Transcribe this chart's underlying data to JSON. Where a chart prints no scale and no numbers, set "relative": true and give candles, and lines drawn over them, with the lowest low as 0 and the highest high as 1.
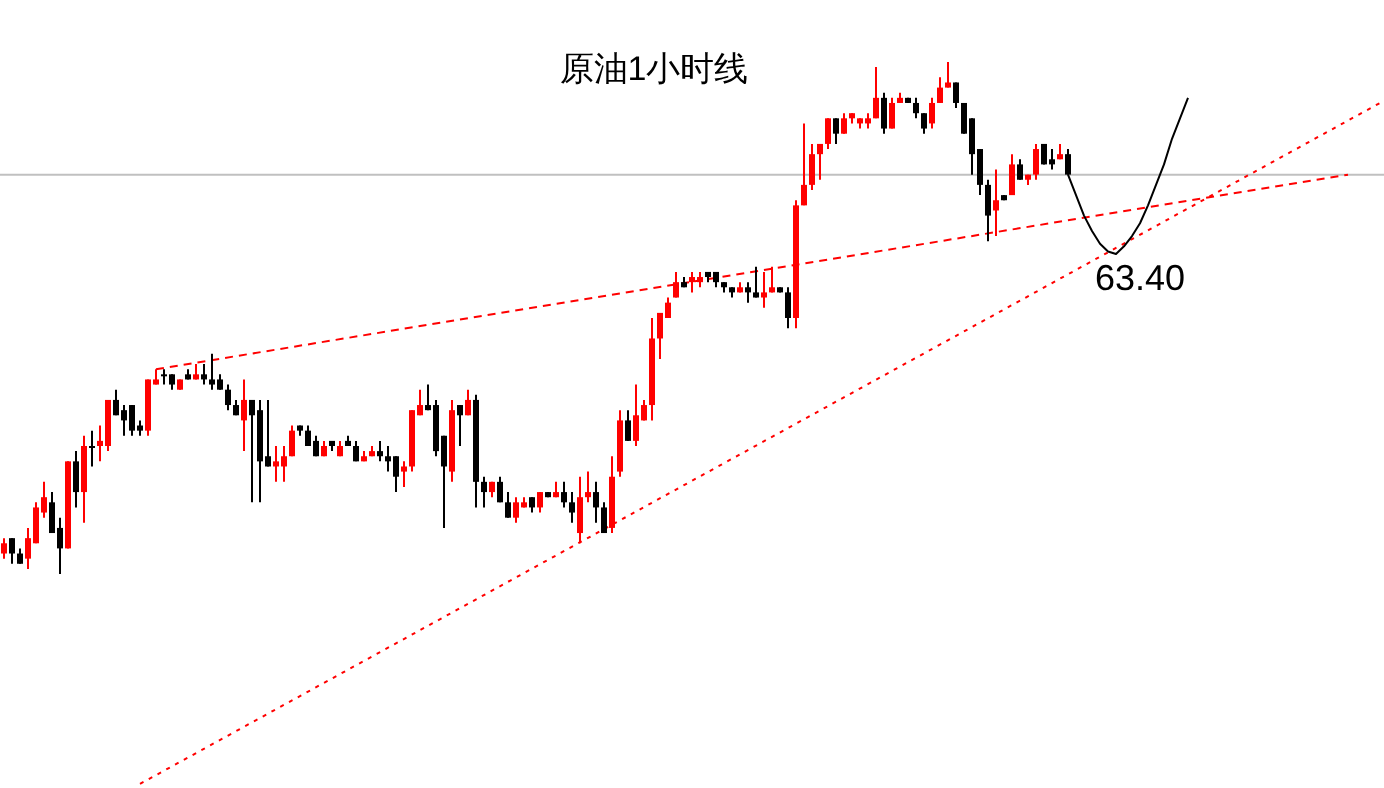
{
  "chart_data": {
    "type": "candlestick",
    "title": "原油1小时线",
    "relative": true,
    "categories": [
      null,
      null,
      null,
      null,
      null,
      null,
      null,
      null,
      null,
      null,
      null,
      null,
      null,
      null,
      null,
      null,
      null,
      null,
      null,
      null,
      null,
      null,
      null,
      null,
      null,
      null,
      null,
      null,
      null,
      null,
      null,
      null,
      null,
      null,
      null,
      null,
      null,
      null,
      null,
      null,
      null,
      null,
      null,
      null,
      null,
      null,
      null,
      null,
      null,
      null,
      null,
      null,
      null,
      null,
      null,
      null,
      null,
      null,
      null,
      null,
      null,
      null,
      null,
      null,
      null,
      null,
      null,
      null,
      null,
      null,
      null,
      null,
      null,
      null,
      null,
      null,
      null,
      null,
      null,
      null,
      null,
      null,
      null,
      null,
      null,
      null,
      null,
      null,
      null,
      null,
      null,
      null,
      null,
      null,
      null,
      null,
      null,
      null,
      null,
      null,
      null,
      null,
      null,
      null,
      null,
      null,
      null,
      null,
      null,
      null,
      null,
      null,
      null,
      null,
      null,
      null,
      null,
      null,
      null,
      null,
      null,
      null,
      null,
      null,
      null,
      null,
      null,
      null,
      null,
      null,
      null,
      null,
      null,
      null,
      null,
      null,
      null,
      null,
      null,
      null,
      null,
      null,
      null,
      null,
      null,
      null,
      null,
      null,
      null,
      null,
      null,
      null,
      null,
      null,
      null,
      null,
      null,
      null,
      null,
      null,
      null,
      null,
      null,
      null,
      null,
      null,
      null,
      null,
      null,
      null,
      null,
      null,
      null
    ],
    "colors": [
      "#ff0000",
      "#000000",
      "#000000",
      "#ff0000",
      "#ff0000",
      "#ff0000",
      "#000000",
      "#000000",
      "#ff0000",
      "#000000",
      "#ff0000",
      "#000000",
      "#ff0000",
      "#ff0000",
      "#000000",
      "#000000",
      "#000000",
      "#000000",
      "#ff0000",
      "#ff0000",
      "#000000",
      "#000000",
      "#ff0000",
      "#000000",
      "#ff0000",
      "#000000",
      "#000000",
      "#000000",
      "#000000",
      "#000000",
      "#ff0000",
      "#000000",
      "#000000",
      "#000000",
      "#ff0000",
      "#ff0000",
      "#ff0000",
      "#000000",
      "#000000",
      "#000000",
      "#ff0000",
      "#000000",
      "#ff0000",
      "#000000",
      "#000000",
      "#ff0000",
      "#ff0000",
      "#000000",
      "#000000",
      "#000000",
      "#ff0000",
      "#ff0000",
      "#ff0000",
      "#000000",
      "#000000",
      "#000000",
      "#ff0000",
      "#000000",
      "#ff0000",
      "#000000",
      "#000000",
      "#ff0000",
      "#000000",
      "#000000",
      "#ff0000",
      "#ff0000",
      "#000000",
      "#ff0000",
      "#000000",
      "#ff0000",
      "#000000",
      "#000000",
      "#ff0000",
      "#ff0000",
      "#000000",
      "#000000",
      "#ff0000",
      "#ff0000",
      "#000000",
      "#ff0000",
      "#ff0000",
      "#ff0000",
      "#ff0000",
      "#ff0000",
      "#ff0000",
      "#000000",
      "#ff0000",
      "#ff0000",
      "#000000",
      "#000000",
      "#000000",
      "#000000",
      "#ff0000",
      "#000000",
      "#000000",
      "#ff0000",
      "#ff0000",
      "#000000",
      "#000000",
      "#ff0000",
      "#ff0000",
      "#ff0000",
      "#ff0000",
      "#ff0000",
      "#000000",
      "#ff0000",
      "#ff0000",
      "#ff0000",
      "#ff0000",
      "#ff0000",
      "#000000",
      "#ff0000",
      "#ff0000",
      "#000000",
      "#000000",
      "#000000",
      "#ff0000",
      "#ff0000",
      "#ff0000",
      "#000000",
      "#000000",
      "#000000",
      "#000000",
      "#000000",
      "#ff0000",
      "#000000",
      "#ff0000",
      "#000000",
      "#ff0000",
      "#ff0000",
      "#000000",
      "#000000",
      "#ff0000",
      "#000000",
      null,
      null,
      null,
      null,
      null,
      null,
      null,
      null,
      null,
      null,
      null,
      null,
      null,
      null,
      null,
      null,
      null,
      null,
      null,
      null,
      null,
      null,
      null,
      null,
      null,
      null,
      null,
      null,
      null,
      null,
      null,
      null,
      null,
      null,
      null,
      null,
      null,
      null,
      null
    ],
    "ohlc": [
      [
        0.04,
        0.07,
        0.03,
        0.06
      ],
      [
        0.07,
        0.07,
        0.02,
        0.04
      ],
      [
        0.04,
        0.05,
        0.02,
        0.02
      ],
      [
        0.03,
        0.09,
        0.01,
        0.07
      ],
      [
        0.06,
        0.14,
        0.06,
        0.13
      ],
      [
        0.12,
        0.18,
        0.11,
        0.15
      ],
      [
        0.14,
        0.16,
        0.08,
        0.08
      ],
      [
        0.09,
        0.11,
        0,
        0.05
      ],
      [
        0.05,
        0.22,
        0.05,
        0.22
      ],
      [
        0.22,
        0.24,
        0.13,
        0.16
      ],
      [
        0.16,
        0.27,
        0.1,
        0.25
      ],
      [
        0.25,
        0.28,
        0.21,
        0.25
      ],
      [
        0.25,
        0.29,
        0.22,
        0.26
      ],
      [
        0.25,
        0.34,
        0.24,
        0.34
      ],
      [
        0.34,
        0.36,
        0.31,
        0.31
      ],
      [
        0.32,
        0.33,
        0.27,
        0.3
      ],
      [
        0.33,
        0.33,
        0.27,
        0.28
      ],
      [
        0.29,
        0.3,
        0.27,
        0.28
      ],
      [
        0.28,
        0.38,
        0.27,
        0.38
      ],
      [
        0.37,
        0.4,
        0.37,
        0.38
      ],
      [
        0.39,
        0.4,
        0.37,
        0.39
      ],
      [
        0.39,
        0.39,
        0.36,
        0.37
      ],
      [
        0.36,
        0.38,
        0.36,
        0.38
      ],
      [
        0.39,
        0.4,
        0.38,
        0.38
      ],
      [
        0.38,
        0.41,
        0.38,
        0.39
      ],
      [
        0.39,
        0.41,
        0.37,
        0.38
      ],
      [
        0.38,
        0.43,
        0.36,
        0.37
      ],
      [
        0.38,
        0.39,
        0.36,
        0.36
      ],
      [
        0.36,
        0.37,
        0.32,
        0.33
      ],
      [
        0.33,
        0.34,
        0.31,
        0.31
      ],
      [
        0.3,
        0.38,
        0.24,
        0.34
      ],
      [
        0.34,
        0.34,
        0.14,
        0.31
      ],
      [
        0.32,
        0.34,
        0.14,
        0.22
      ],
      [
        0.23,
        0.34,
        0.21,
        0.21
      ],
      [
        0.21,
        0.25,
        0.18,
        0.22
      ],
      [
        0.21,
        0.25,
        0.18,
        0.23
      ],
      [
        0.23,
        0.29,
        0.23,
        0.28
      ],
      [
        0.29,
        0.29,
        0.27,
        0.28
      ],
      [
        0.28,
        0.29,
        0.25,
        0.25
      ],
      [
        0.26,
        0.27,
        0.23,
        0.23
      ],
      [
        0.23,
        0.26,
        0.23,
        0.25
      ],
      [
        0.26,
        0.26,
        0.24,
        0.25
      ],
      [
        0.23,
        0.26,
        0.23,
        0.25
      ],
      [
        0.26,
        0.27,
        0.25,
        0.25
      ],
      [
        0.25,
        0.26,
        0.22,
        0.22
      ],
      [
        0.22,
        0.24,
        0.22,
        0.23
      ],
      [
        0.23,
        0.25,
        0.23,
        0.24
      ],
      [
        0.24,
        0.26,
        0.22,
        0.23
      ],
      [
        0.23,
        0.25,
        0.2,
        0.22
      ],
      [
        0.23,
        0.23,
        0.16,
        0.19
      ],
      [
        0.2,
        0.22,
        0.17,
        0.21
      ],
      [
        0.21,
        0.32,
        0.2,
        0.32
      ],
      [
        0.31,
        0.36,
        0.31,
        0.33
      ],
      [
        0.33,
        0.37,
        0.32,
        0.32
      ],
      [
        0.33,
        0.34,
        0.23,
        0.24
      ],
      [
        0.27,
        0.27,
        0.09,
        0.21
      ],
      [
        0.2,
        0.34,
        0.18,
        0.32
      ],
      [
        0.33,
        0.33,
        0.25,
        0.31
      ],
      [
        0.31,
        0.36,
        0.31,
        0.34
      ],
      [
        0.34,
        0.35,
        0.13,
        0.18
      ],
      [
        0.18,
        0.19,
        0.13,
        0.16
      ],
      [
        0.16,
        0.18,
        0.15,
        0.18
      ],
      [
        0.18,
        0.19,
        0.14,
        0.14
      ],
      [
        0.14,
        0.16,
        0.11,
        0.11
      ],
      [
        0.11,
        0.15,
        0.1,
        0.14
      ],
      [
        0.13,
        0.15,
        0.13,
        0.14
      ],
      [
        0.15,
        0.15,
        0.12,
        0.13
      ],
      [
        0.13,
        0.16,
        0.12,
        0.16
      ],
      [
        0.16,
        0.16,
        0.15,
        0.15
      ],
      [
        0.15,
        0.18,
        0.15,
        0.16
      ],
      [
        0.16,
        0.18,
        0.13,
        0.14
      ],
      [
        0.14,
        0.16,
        0.1,
        0.12
      ],
      [
        0.08,
        0.19,
        0.06,
        0.15
      ],
      [
        0.15,
        0.2,
        0.14,
        0.16
      ],
      [
        0.16,
        0.18,
        0.1,
        0.13
      ],
      [
        0.13,
        0.14,
        0.08,
        0.08
      ],
      [
        0.09,
        0.23,
        0.08,
        0.19
      ],
      [
        0.2,
        0.32,
        0.19,
        0.3
      ],
      [
        0.3,
        0.32,
        0.26,
        0.26
      ],
      [
        0.26,
        0.37,
        0.25,
        0.31
      ],
      [
        0.3,
        0.34,
        0.3,
        0.33
      ],
      [
        0.33,
        0.5,
        0.3,
        0.46
      ],
      [
        0.46,
        0.51,
        0.42,
        0.51
      ],
      [
        0.5,
        0.54,
        0.5,
        0.53
      ],
      [
        0.54,
        0.59,
        0.54,
        0.57
      ],
      [
        0.57,
        0.58,
        0.56,
        0.56
      ],
      [
        0.57,
        0.59,
        0.55,
        0.58
      ],
      [
        0.57,
        0.59,
        0.56,
        0.58
      ],
      [
        0.59,
        0.59,
        0.57,
        0.58
      ],
      [
        0.59,
        0.59,
        0.56,
        0.57
      ],
      [
        0.57,
        0.57,
        0.55,
        0.56
      ],
      [
        0.56,
        0.56,
        0.54,
        0.55
      ],
      [
        0.55,
        0.57,
        0.55,
        0.56
      ],
      [
        0.56,
        0.57,
        0.53,
        0.55
      ],
      [
        0.55,
        0.6,
        0.54,
        0.54
      ],
      [
        0.54,
        0.59,
        0.52,
        0.55
      ],
      [
        0.55,
        0.6,
        0.55,
        0.56
      ],
      [
        0.56,
        0.56,
        0.55,
        0.55
      ],
      [
        0.55,
        0.56,
        0.48,
        0.5
      ],
      [
        0.5,
        0.73,
        0.48,
        0.72
      ],
      [
        0.72,
        0.88,
        0.72,
        0.76
      ],
      [
        0.76,
        0.84,
        0.75,
        0.82
      ],
      [
        0.82,
        0.84,
        0.77,
        0.84
      ],
      [
        0.84,
        0.89,
        0.83,
        0.89
      ],
      [
        0.89,
        0.89,
        0.84,
        0.86
      ],
      [
        0.86,
        0.9,
        0.86,
        0.89
      ],
      [
        0.89,
        0.9,
        0.88,
        0.9
      ],
      [
        0.88,
        0.89,
        0.87,
        0.89
      ],
      [
        0.88,
        0.9,
        0.87,
        0.89
      ],
      [
        0.89,
        0.99,
        0.89,
        0.93
      ],
      [
        0.93,
        0.94,
        0.86,
        0.87
      ],
      [
        0.87,
        0.93,
        0.87,
        0.92
      ],
      [
        0.92,
        0.94,
        0.92,
        0.93
      ],
      [
        0.93,
        0.93,
        0.92,
        0.92
      ],
      [
        0.92,
        0.93,
        0.89,
        0.9
      ],
      [
        0.9,
        0.9,
        0.86,
        0.87
      ],
      [
        0.88,
        0.93,
        0.87,
        0.92
      ],
      [
        0.92,
        0.97,
        0.92,
        0.95
      ],
      [
        0.95,
        1,
        0.95,
        0.96
      ],
      [
        0.96,
        0.96,
        0.91,
        0.92
      ],
      [
        0.92,
        0.92,
        0.86,
        0.86
      ],
      [
        0.89,
        0.89,
        0.78,
        0.82
      ],
      [
        0.83,
        0.83,
        0.74,
        0.76
      ],
      [
        0.76,
        0.77,
        0.65,
        0.7
      ],
      [
        0.71,
        0.79,
        0.66,
        0.73
      ],
      [
        0.74,
        0.74,
        0.73,
        0.73
      ],
      [
        0.74,
        0.82,
        0.74,
        0.8
      ],
      [
        0.8,
        0.81,
        0.77,
        0.77
      ],
      [
        0.77,
        0.78,
        0.76,
        0.78
      ],
      [
        0.78,
        0.84,
        0.77,
        0.83
      ],
      [
        0.84,
        0.84,
        0.8,
        0.8
      ],
      [
        0.81,
        0.83,
        0.79,
        0.8
      ],
      [
        0.81,
        0.84,
        0.81,
        0.82
      ],
      [
        0.82,
        0.83,
        0.78,
        0.78
      ],
      null,
      null,
      null,
      null,
      null,
      null,
      null,
      null,
      null,
      null,
      null,
      null,
      null,
      null,
      null,
      null,
      null,
      null,
      null,
      null,
      null,
      null,
      null,
      null,
      null,
      null,
      null,
      null,
      null,
      null,
      null,
      null,
      null,
      null,
      null,
      null,
      null,
      null,
      null
    ],
    "series": [
      {
        "type": "line",
        "color": "#ff0000",
        "line_style": "dashed",
        "values": [
          null,
          null,
          null,
          null,
          null,
          null,
          null,
          null,
          null,
          null,
          null,
          null,
          null,
          null,
          null,
          null,
          null,
          null,
          null,
          0.4,
          null,
          null,
          null,
          null,
          null,
          null,
          null,
          null,
          null,
          null,
          null,
          null,
          null,
          null,
          null,
          null,
          null,
          null,
          null,
          null,
          null,
          null,
          null,
          null,
          null,
          null,
          null,
          null,
          null,
          null,
          null,
          null,
          null,
          null,
          null,
          null,
          null,
          null,
          null,
          null,
          null,
          null,
          null,
          null,
          null,
          null,
          null,
          null,
          null,
          null,
          null,
          null,
          null,
          null,
          null,
          null,
          null,
          null,
          null,
          null,
          null,
          null,
          null,
          null,
          null,
          null,
          null,
          null,
          null,
          null,
          null,
          null,
          null,
          null,
          null,
          null,
          null,
          null,
          null,
          null,
          null,
          null,
          null,
          null,
          null,
          null,
          null,
          null,
          null,
          null,
          null,
          null,
          null,
          null,
          null,
          null,
          null,
          null,
          null,
          null,
          null,
          null,
          null,
          null,
          null,
          null,
          null,
          null,
          null,
          null,
          null,
          null,
          null,
          null,
          null,
          null,
          null,
          null,
          null,
          null,
          null,
          null,
          null,
          null,
          null,
          null,
          null,
          null,
          null,
          null,
          null,
          null,
          null,
          null,
          null,
          null,
          null,
          null,
          null,
          null,
          null,
          null,
          null,
          null,
          null,
          null,
          null,
          null,
          0.78,
          null,
          null,
          null,
          null
        ]
      },
      {
        "type": "line",
        "color": "#ff0000",
        "line_style": "dotted",
        "values": [
          null,
          null,
          null,
          null,
          null,
          null,
          null,
          null,
          null,
          null,
          null,
          null,
          null,
          null,
          null,
          null,
          null,
          -0.41,
          null,
          null,
          null,
          null,
          null,
          null,
          null,
          null,
          null,
          null,
          null,
          null,
          null,
          null,
          null,
          null,
          null,
          null,
          null,
          null,
          null,
          null,
          null,
          null,
          null,
          null,
          null,
          null,
          null,
          null,
          null,
          null,
          null,
          null,
          null,
          null,
          null,
          null,
          null,
          null,
          null,
          null,
          null,
          null,
          null,
          null,
          null,
          null,
          null,
          null,
          null,
          null,
          null,
          null,
          null,
          null,
          null,
          null,
          null,
          null,
          null,
          null,
          null,
          null,
          null,
          null,
          null,
          null,
          null,
          null,
          null,
          null,
          null,
          null,
          null,
          null,
          null,
          null,
          null,
          null,
          null,
          null,
          null,
          null,
          null,
          null,
          null,
          null,
          null,
          null,
          null,
          null,
          null,
          null,
          null,
          null,
          null,
          null,
          null,
          null,
          null,
          null,
          null,
          null,
          null,
          null,
          null,
          null,
          null,
          null,
          null,
          null,
          null,
          null,
          null,
          null,
          null,
          null,
          null,
          null,
          null,
          null,
          null,
          null,
          null,
          null,
          null,
          null,
          null,
          null,
          null,
          null,
          null,
          null,
          null,
          null,
          null,
          null,
          null,
          null,
          null,
          null,
          null,
          null,
          null,
          null,
          null,
          null,
          null,
          null,
          null,
          null,
          null,
          null,
          0.92
        ]
      },
      {
        "type": "line",
        "color": "#000000",
        "line_style": "solid",
        "values": [
          null,
          null,
          null,
          null,
          null,
          null,
          null,
          null,
          null,
          null,
          null,
          null,
          null,
          null,
          null,
          null,
          null,
          null,
          null,
          null,
          null,
          null,
          null,
          null,
          null,
          null,
          null,
          null,
          null,
          null,
          null,
          null,
          null,
          null,
          null,
          null,
          null,
          null,
          null,
          null,
          null,
          null,
          null,
          null,
          null,
          null,
          null,
          null,
          null,
          null,
          null,
          null,
          null,
          null,
          null,
          null,
          null,
          null,
          null,
          null,
          null,
          null,
          null,
          null,
          null,
          null,
          null,
          null,
          null,
          null,
          null,
          null,
          null,
          null,
          null,
          null,
          null,
          null,
          null,
          null,
          null,
          null,
          null,
          null,
          null,
          null,
          null,
          null,
          null,
          null,
          null,
          null,
          null,
          null,
          null,
          null,
          null,
          null,
          null,
          null,
          null,
          null,
          null,
          null,
          null,
          null,
          null,
          null,
          null,
          null,
          null,
          null,
          null,
          null,
          null,
          null,
          null,
          null,
          null,
          null,
          null,
          null,
          null,
          null,
          null,
          null,
          null,
          null,
          null,
          null,
          null,
          null,
          null,
          0.78,
          0.74,
          0.7,
          0.67,
          0.645,
          0.63,
          0.625,
          0.64,
          0.66,
          0.685,
          0.72,
          0.76,
          0.8,
          0.85,
          0.89,
          0.93,
          null,
          null,
          null,
          null,
          null,
          null,
          null,
          null,
          null,
          null,
          null,
          null,
          null,
          null,
          null,
          null,
          null,
          null,
          null,
          null,
          null,
          null,
          null,
          null
        ]
      }
    ],
    "ref_lines": [
      {
        "axis": "y",
        "value": 0.78,
        "color": "#c0c0c0"
      }
    ],
    "annotations": [
      "63.40"
    ]
  }
}
